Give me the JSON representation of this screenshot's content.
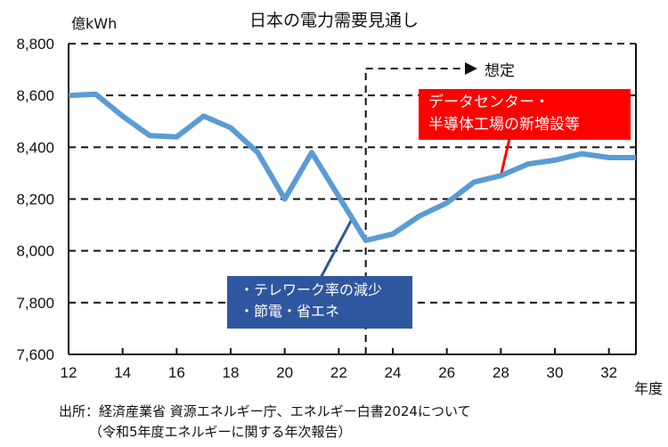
{
  "chart_data": {
    "type": "line",
    "title": "日本の電力需要見通し",
    "ylabel": "億kWh",
    "xlabel": "年度",
    "ylim": [
      7600,
      8800
    ],
    "xlim": [
      12,
      33
    ],
    "yticks": [
      7600,
      7800,
      8000,
      8200,
      8400,
      8600,
      8800
    ],
    "ytick_labels": [
      "7,600",
      "7,800",
      "8,000",
      "8,200",
      "8,400",
      "8,600",
      "8,800"
    ],
    "xticks": [
      12,
      14,
      16,
      18,
      20,
      22,
      24,
      26,
      28,
      30,
      32
    ],
    "xtick_labels": [
      "12",
      "14",
      "16",
      "18",
      "20",
      "22",
      "24",
      "26",
      "28",
      "30",
      "32"
    ],
    "grid": "horizontal-dashed",
    "series": [
      {
        "name": "電力需要",
        "color": "#5b9bd5",
        "x": [
          12,
          13,
          14,
          15,
          16,
          17,
          18,
          19,
          20,
          21,
          22,
          23,
          24,
          25,
          26,
          27,
          28,
          29,
          30,
          31,
          32,
          33
        ],
        "values": [
          8600,
          8605,
          8520,
          8445,
          8440,
          8520,
          8475,
          8380,
          8200,
          8380,
          8210,
          8040,
          8065,
          8135,
          8185,
          8265,
          8290,
          8335,
          8350,
          8375,
          8360,
          8360
        ]
      }
    ],
    "forecast_start": 23,
    "annotations": {
      "forecast_label": "想定",
      "decline": {
        "lines": [
          "・テレワーク率の減少",
          "・節電・省エネ"
        ],
        "color": "#2f57a0",
        "points_to_x": 22.5
      },
      "growth": {
        "lines": [
          "データセンター・",
          "半導体工場の新増設等"
        ],
        "color": "#ff0000",
        "points_to_x": 28
      }
    }
  },
  "source": {
    "line1": "出所：経済産業省 資源エネルギー庁、エネルギー白書2024について",
    "line2": "（令和5年度エネルギーに関する年次報告）"
  }
}
